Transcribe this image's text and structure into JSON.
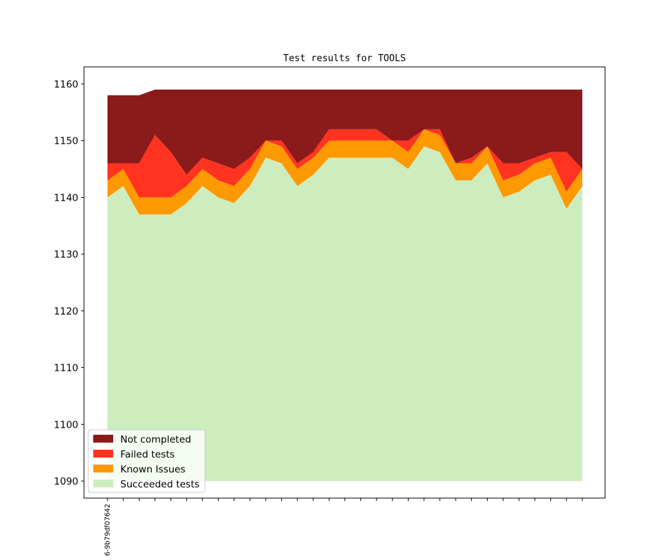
{
  "chart_data": {
    "type": "area",
    "stacked": true,
    "title": "Test results for TOOLS",
    "xlabel": "",
    "ylabel": "",
    "ylim": [
      1087,
      1163
    ],
    "yticks": [
      1090,
      1100,
      1110,
      1120,
      1130,
      1140,
      1150,
      1160
    ],
    "baseline": 1090,
    "x_tick_labels": [
      "6-9b79df07642"
    ],
    "legend_position": "lower-left",
    "series": [
      {
        "name": "Succeeded tests",
        "color": "#cdedbf",
        "values": [
          1140,
          1142,
          1137,
          1137,
          1137,
          1139,
          1142,
          1140,
          1139,
          1142,
          1147,
          1146,
          1142,
          1144,
          1147,
          1147,
          1147,
          1147,
          1147,
          1145,
          1149,
          1148,
          1143,
          1143,
          1146,
          1140,
          1141,
          1143,
          1144,
          1138,
          1142
        ]
      },
      {
        "name": "Known Issues",
        "color": "#ff9900",
        "values": [
          1143,
          1145,
          1140,
          1140,
          1140,
          1142,
          1145,
          1143,
          1142,
          1145,
          1150,
          1149,
          1145,
          1147,
          1150,
          1150,
          1150,
          1150,
          1150,
          1148,
          1152,
          1151,
          1146,
          1146,
          1149,
          1143,
          1144,
          1146,
          1147,
          1141,
          1145
        ]
      },
      {
        "name": "Failed tests",
        "color": "#ff3320",
        "values": [
          1146,
          1146,
          1146,
          1151,
          1148,
          1144,
          1147,
          1146,
          1145,
          1147,
          1150,
          1150,
          1146,
          1148,
          1152,
          1152,
          1152,
          1152,
          1150,
          1150,
          1152,
          1152,
          1146,
          1147,
          1149,
          1146,
          1146,
          1147,
          1148,
          1148,
          1145
        ]
      },
      {
        "name": "Not completed",
        "color": "#8b1a1a",
        "values": [
          1158,
          1158,
          1158,
          1159,
          1159,
          1159,
          1159,
          1159,
          1159,
          1159,
          1159,
          1159,
          1159,
          1159,
          1159,
          1159,
          1159,
          1159,
          1159,
          1159,
          1159,
          1159,
          1159,
          1159,
          1159,
          1159,
          1159,
          1159,
          1159,
          1159,
          1159
        ]
      }
    ],
    "legend_order": [
      "Not completed",
      "Failed tests",
      "Known Issues",
      "Succeeded tests"
    ]
  }
}
